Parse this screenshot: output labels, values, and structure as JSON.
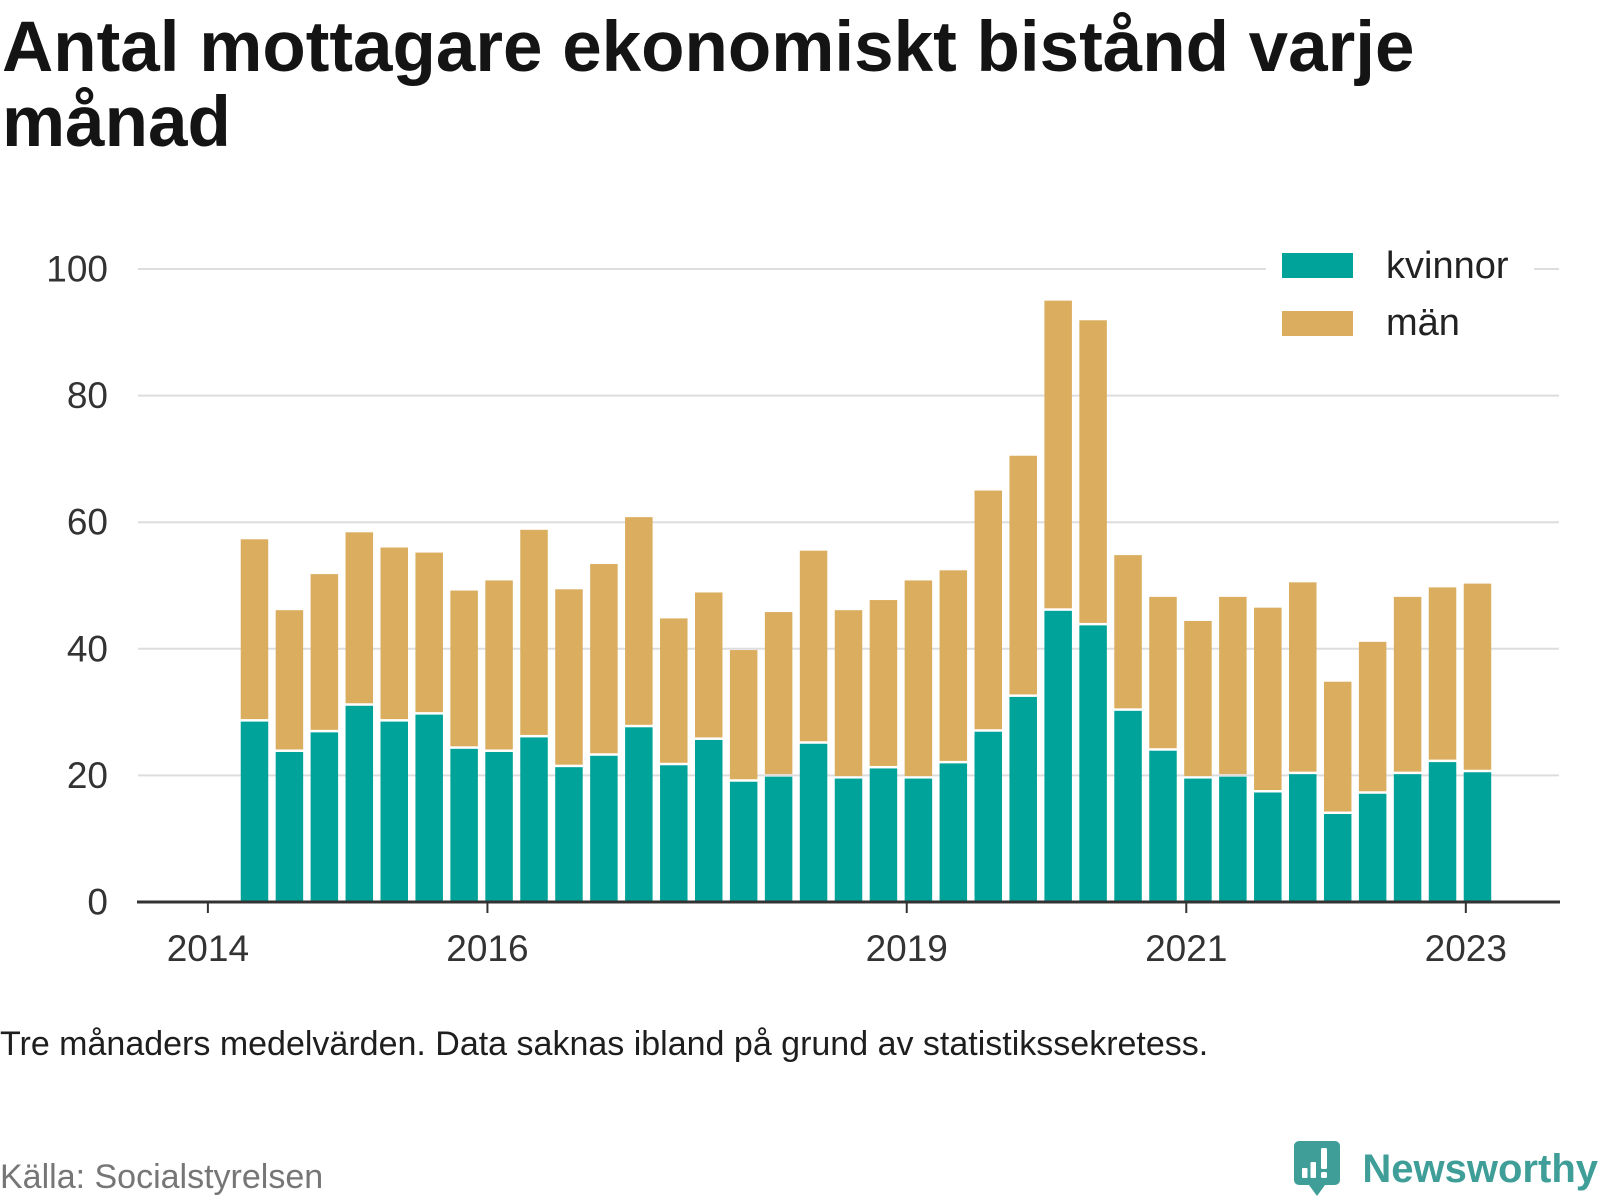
{
  "chart_data": {
    "type": "bar",
    "stacked": true,
    "title": "Antal mottagare ekonomiskt bistånd varje månad",
    "x": [
      "2014-05",
      "2014-08",
      "2014-11",
      "2015-02",
      "2015-05",
      "2015-08",
      "2015-11",
      "2016-02",
      "2016-05",
      "2016-08",
      "2016-11",
      "2017-02",
      "2017-05",
      "2017-08",
      "2017-11",
      "2018-02",
      "2018-05",
      "2018-08",
      "2018-11",
      "2019-02",
      "2019-05",
      "2019-08",
      "2019-11",
      "2020-02",
      "2020-05",
      "2020-08",
      "2020-11",
      "2021-02",
      "2021-05",
      "2021-08",
      "2021-11",
      "2022-02",
      "2022-05",
      "2022-08",
      "2022-11",
      "2023-02"
    ],
    "series": [
      {
        "name": "kvinnor",
        "color": "#00A39A",
        "values": [
          28.5,
          23.7,
          26.8,
          31.0,
          28.5,
          29.6,
          24.2,
          23.7,
          26.0,
          21.3,
          23.1,
          27.6,
          21.6,
          25.6,
          19.0,
          19.8,
          25.0,
          19.5,
          21.1,
          19.5,
          21.9,
          26.9,
          32.4,
          46.0,
          43.7,
          30.2,
          23.9,
          19.5,
          19.8,
          17.3,
          20.2,
          13.9,
          17.1,
          20.2,
          22.1,
          20.5
        ]
      },
      {
        "name": "män",
        "color": "#DBAD5E",
        "values": [
          28.8,
          22.4,
          25.0,
          27.4,
          27.5,
          25.6,
          25.0,
          27.1,
          32.8,
          28.1,
          30.3,
          33.2,
          23.2,
          23.3,
          20.8,
          26.0,
          30.5,
          26.6,
          26.6,
          31.3,
          30.5,
          38.1,
          38.1,
          49.0,
          48.2,
          24.6,
          24.3,
          24.9,
          28.4,
          29.2,
          30.3,
          20.9,
          24.0,
          28.0,
          27.6,
          29.8
        ]
      }
    ],
    "x_ticks": [
      "2014",
      "2016",
      "2019",
      "2021",
      "2023"
    ],
    "y_ticks": [
      0,
      20,
      40,
      60,
      80,
      100
    ],
    "xlim": [
      "2013-07",
      "2023-09"
    ],
    "ylim": [
      0,
      100
    ],
    "grid": "horizontal",
    "legend_position": "top-right"
  },
  "footnote": "Tre månaders medelvärden. Data saknas ibland på grund av statistikssekretess.",
  "source": "Källa: Socialstyrelsen",
  "logo": {
    "text": "Newsworthy",
    "icon": "newsworthy-bubble-chart-icon",
    "color": "#3F9E98"
  }
}
